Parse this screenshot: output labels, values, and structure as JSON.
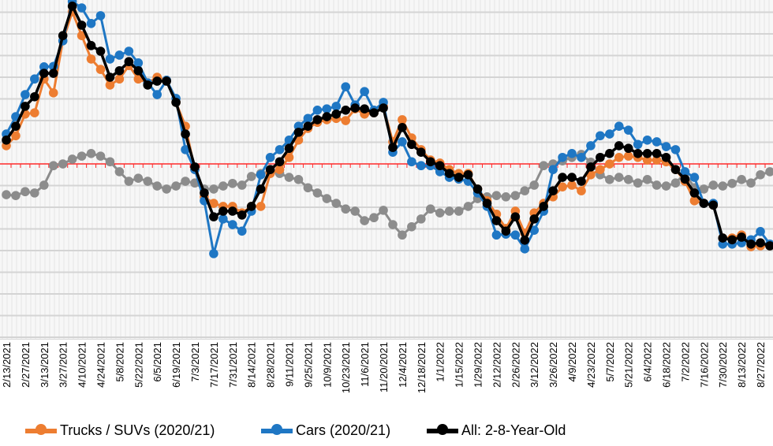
{
  "chart_data": {
    "type": "line",
    "title": "",
    "xlabel": "",
    "ylabel": "",
    "ylim": [
      -40.36,
      37.82
    ],
    "grid_step": 5,
    "reference_line": 0,
    "grid": true,
    "legend_position": "bottom",
    "x_tick_labels": [
      "2/13/2021",
      "2/27/2021",
      "3/13/2021",
      "3/27/2021",
      "4/10/2021",
      "4/24/2021",
      "5/8/2021",
      "5/22/2021",
      "6/5/2021",
      "6/19/2021",
      "7/3/2021",
      "7/17/2021",
      "7/31/2021",
      "8/14/2021",
      "8/28/2021",
      "9/11/2021",
      "9/25/2021",
      "10/9/2021",
      "10/23/2021",
      "11/6/2021",
      "11/20/2021",
      "12/4/2021",
      "12/18/2021",
      "1/1/2022",
      "1/15/2022",
      "1/29/2022",
      "2/12/2022",
      "2/26/2022",
      "3/12/2022",
      "3/26/2022",
      "4/9/2022",
      "4/23/2022",
      "5/7/2022",
      "5/21/2022",
      "6/4/2022",
      "6/18/2022",
      "7/2/2022",
      "7/16/2022",
      "7/30/2022",
      "8/13/2022",
      "8/27/2022"
    ],
    "points_per_tick": 2,
    "series": [
      {
        "key": "gray",
        "name": "",
        "color": "#8c8c8c",
        "values": [
          -7.1,
          -7.3,
          -6.4,
          -6.7,
          -4.9,
          -0.4,
          0,
          1.1,
          1.8,
          2.4,
          1.8,
          0.5,
          -1.8,
          -4,
          -3.3,
          -4,
          -5.1,
          -5.8,
          -5.1,
          -4,
          -4.4,
          -5.8,
          -5.8,
          -5.1,
          -4.5,
          -4.9,
          -2.9,
          -2.2,
          -1.8,
          -2.2,
          -3.1,
          -3.6,
          -5.5,
          -6.7,
          -8,
          -9.1,
          -10.4,
          -10.9,
          -13.1,
          -12.4,
          -10.7,
          -14,
          -16.4,
          -14.5,
          -12.7,
          -10.4,
          -11.3,
          -10.9,
          -10.9,
          -9.8,
          -8,
          -7.6,
          -7.3,
          -7.6,
          -7.3,
          -6.2,
          -4.9,
          -0.4,
          0,
          0.7,
          1.5,
          2.2,
          0.4,
          -2.5,
          -3.6,
          -3.1,
          -3.6,
          -4.4,
          -3.6,
          -4.9,
          -5.1,
          -4.4,
          -2.2,
          -5.5,
          -5.8,
          -4.9,
          -5.1,
          -4.5,
          -3.6,
          -4.4,
          -2.5,
          -1.8
        ]
      },
      {
        "key": "trucks",
        "name": "Trucks / SUVs (2020/21)",
        "color": "#ed7d31",
        "values": [
          4.2,
          6.5,
          11.5,
          11.8,
          19.6,
          16.4,
          28.4,
          35.1,
          29.6,
          24.2,
          21.8,
          18.2,
          19.6,
          22.7,
          19.6,
          18.7,
          20,
          19.3,
          14.2,
          8.7,
          -1.3,
          -7.6,
          -9.1,
          -9.8,
          -9.8,
          -11.3,
          -9.8,
          -9.8,
          -2.2,
          -1.3,
          1.5,
          5.5,
          8.2,
          9.6,
          10.2,
          10.5,
          10,
          12.7,
          11.5,
          11.8,
          13.3,
          5.1,
          10.2,
          6,
          3.3,
          0.9,
          0.2,
          -1.3,
          -2.2,
          -2.2,
          -5.8,
          -8.5,
          -11.6,
          -14.9,
          -10.9,
          -16,
          -11.3,
          -9.1,
          -7.6,
          -5.3,
          -4.9,
          -6.2,
          -2.5,
          -1.3,
          0,
          1.5,
          1.8,
          1.5,
          0.9,
          0.9,
          0.5,
          -1.3,
          -4,
          -8.5,
          -9.1,
          -9.5,
          -17.1,
          -17.1,
          -16.4,
          -19.1,
          -18.9,
          -18.9
        ]
      },
      {
        "key": "cars",
        "name": "Cars (2020/21)",
        "color": "#1f77c4",
        "values": [
          6.9,
          10.9,
          16,
          19.6,
          22.4,
          22.5,
          28.4,
          37.5,
          36,
          32.4,
          34.2,
          24.2,
          25.1,
          26,
          23.3,
          18.7,
          16,
          19.3,
          15.1,
          3.3,
          -1.3,
          -8.5,
          -20.7,
          -12.7,
          -14,
          -15.5,
          -10.9,
          -2.5,
          1.5,
          3.3,
          5.5,
          8.7,
          10.5,
          12.4,
          12.7,
          13.3,
          17.8,
          13.6,
          16.7,
          12.4,
          14.2,
          2.7,
          5.1,
          0.5,
          -0.4,
          -0.4,
          -1.8,
          -3.1,
          -3.5,
          -4,
          -6.7,
          -9.8,
          -16.4,
          -16.2,
          -16.4,
          -19.6,
          -15.3,
          -10.9,
          -1.3,
          1.5,
          2.4,
          1.5,
          4.2,
          6.5,
          6.9,
          8.7,
          7.8,
          4.5,
          5.5,
          5.1,
          4,
          3.3,
          -1.8,
          -3.1,
          -9.1,
          -9.1,
          -18.5,
          -18.5,
          -18.2,
          -17.5,
          -15.6,
          -18.5
        ]
      },
      {
        "key": "all",
        "name": "All: 2-8-Year-Old",
        "color": "#000000",
        "values": [
          5.5,
          8.7,
          13.3,
          15.5,
          20.9,
          20.9,
          29.6,
          36.4,
          32,
          27.3,
          26,
          20,
          21.5,
          23.6,
          21.5,
          18.2,
          19.1,
          19.1,
          14.2,
          6.9,
          -0.7,
          -6.7,
          -12.2,
          -10.9,
          -10.9,
          -11.8,
          -9.8,
          -5.8,
          -1.3,
          0.5,
          3.6,
          7.3,
          8.7,
          10.2,
          10.9,
          11.5,
          12.4,
          12.9,
          12.7,
          11.8,
          12.9,
          3.8,
          8.4,
          4.5,
          2.7,
          0.5,
          -0.4,
          -2.2,
          -3.1,
          -2.5,
          -5.8,
          -9.1,
          -13.1,
          -15.5,
          -12.2,
          -17.6,
          -12.7,
          -9.8,
          -6.2,
          -3.1,
          -3.1,
          -4,
          -0.7,
          1.5,
          2.4,
          4.2,
          3.6,
          2.4,
          2.4,
          2.4,
          1.5,
          -1.3,
          -3.5,
          -6.7,
          -9.1,
          -9.5,
          -17.1,
          -17.5,
          -16.9,
          -18.5,
          -18.2,
          -18.9
        ]
      }
    ],
    "colors": {
      "reference_line": "#ff2a2a",
      "grid": "#d4d4d4"
    }
  },
  "legend": [
    {
      "label": "Trucks / SUVs (2020/21)",
      "color": "#ed7d31"
    },
    {
      "label": "Cars (2020/21)",
      "color": "#1f77c4"
    },
    {
      "label": "All: 2-8-Year-Old",
      "color": "#000000"
    }
  ]
}
